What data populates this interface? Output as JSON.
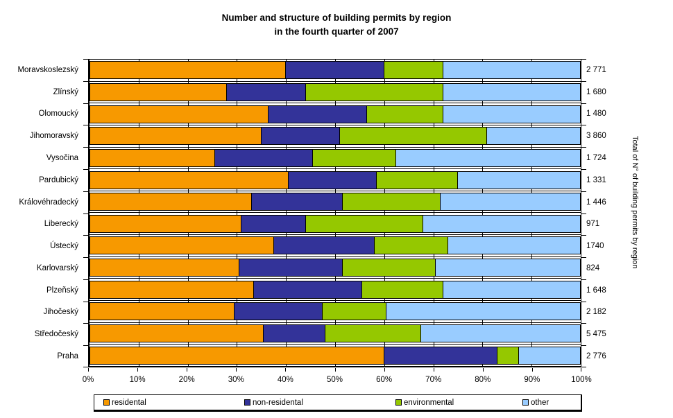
{
  "chart_data": {
    "type": "stacked-bar-horizontal",
    "title_line1": "Number and structure of building permits by region",
    "title_line2": "in the fourth quarter of 2007",
    "right_axis_label": "Total of N° of building permits by region",
    "x_axis": {
      "range": [
        0,
        100
      ],
      "unit": "%",
      "tick_labels": [
        "0%",
        "10%",
        "20%",
        "30%",
        "40%",
        "50%",
        "60%",
        "70%",
        "80%",
        "90%",
        "100%"
      ],
      "gridlines": true
    },
    "legend_position": "bottom",
    "series": [
      {
        "name": "residental",
        "color": "#F79900"
      },
      {
        "name": "non-residental",
        "color": "#333399"
      },
      {
        "name": "environmental",
        "color": "#95C800"
      },
      {
        "name": "other",
        "color": "#99CCFF"
      }
    ],
    "rows": [
      {
        "region": "Moravskoslezský",
        "total": "2 771",
        "pct": [
          40,
          20,
          12,
          28
        ]
      },
      {
        "region": "Zlínský",
        "total": "1 680",
        "pct": [
          28,
          16,
          28,
          28
        ]
      },
      {
        "region": "Olomoucký",
        "total": "1 480",
        "pct": [
          36.5,
          20,
          15.5,
          28
        ]
      },
      {
        "region": "Jihomoravský",
        "total": "3 860",
        "pct": [
          35,
          16,
          30,
          19
        ]
      },
      {
        "region": "Vysočina",
        "total": "1 724",
        "pct": [
          25.5,
          20,
          17,
          37.5
        ]
      },
      {
        "region": "Pardubický",
        "total": "1 331",
        "pct": [
          40.5,
          18,
          16.5,
          25
        ]
      },
      {
        "region": "Královéhradecký",
        "total": "1 446",
        "pct": [
          33,
          18.5,
          20,
          28.5
        ]
      },
      {
        "region": "Liberecký",
        "total": "971",
        "pct": [
          31,
          13,
          24,
          32
        ]
      },
      {
        "region": "Ústecký",
        "total": "1740",
        "pct": [
          37.5,
          20.5,
          15,
          27
        ]
      },
      {
        "region": "Karlovarský",
        "total": "824",
        "pct": [
          30.5,
          21,
          19,
          29.5
        ]
      },
      {
        "region": "Plzeňský",
        "total": "1 648",
        "pct": [
          33.5,
          22,
          16.5,
          28
        ]
      },
      {
        "region": "Jihočeský",
        "total": "2 182",
        "pct": [
          29.5,
          18,
          13,
          39.5
        ]
      },
      {
        "region": "Středočeský",
        "total": "5 475",
        "pct": [
          35.5,
          12.5,
          19.5,
          32.5
        ]
      },
      {
        "region": "Praha",
        "total": "2 776",
        "pct": [
          60,
          23,
          4.5,
          12.5
        ]
      }
    ]
  }
}
